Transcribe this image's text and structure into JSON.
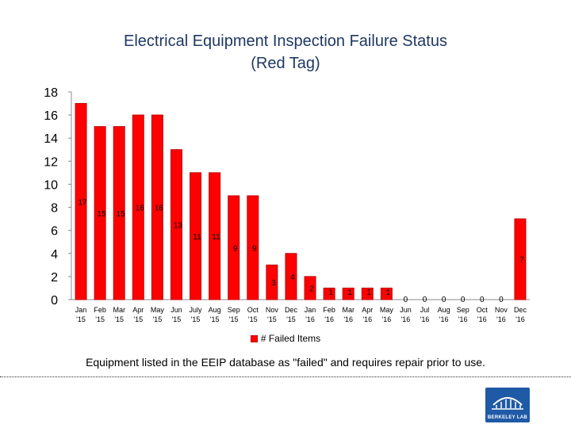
{
  "chart_data": {
    "type": "bar",
    "title_line1": "Electrical Equipment Inspection Failure Status",
    "title_line2": "(Red Tag)",
    "categories": [
      [
        "Jan",
        "'15"
      ],
      [
        "Feb",
        "'15"
      ],
      [
        "Mar",
        "'15"
      ],
      [
        "Apr",
        "'15"
      ],
      [
        "May",
        "'15"
      ],
      [
        "Jun",
        "'15"
      ],
      [
        "July",
        "'15"
      ],
      [
        "Aug",
        "'15"
      ],
      [
        "Sep",
        "'15"
      ],
      [
        "Oct",
        "'15"
      ],
      [
        "Nov",
        "'15"
      ],
      [
        "Dec",
        "'15"
      ],
      [
        "Jan",
        "'16"
      ],
      [
        "Feb",
        "'16"
      ],
      [
        "Mar",
        "'16"
      ],
      [
        "Apr",
        "'16"
      ],
      [
        "May",
        "'16"
      ],
      [
        "Jun",
        "'16"
      ],
      [
        "Jul",
        "'16"
      ],
      [
        "Aug",
        "'16"
      ],
      [
        "Sep",
        "'16"
      ],
      [
        "Oct",
        "'16"
      ],
      [
        "Nov",
        "'16"
      ],
      [
        "Dec",
        "'16"
      ]
    ],
    "series": [
      {
        "name": "# Failed Items",
        "values": [
          17,
          15,
          15,
          16,
          16,
          13,
          11,
          11,
          9,
          9,
          3,
          4,
          2,
          1,
          1,
          1,
          1,
          0,
          0,
          0,
          0,
          0,
          0,
          7
        ],
        "labels": [
          "17",
          "15",
          "15",
          "16",
          "16",
          "13",
          "11",
          "11",
          "9",
          "9",
          "3",
          "4",
          "2",
          "1",
          "1",
          "1",
          "1",
          "0",
          "0",
          "0",
          "0",
          "0",
          "0",
          "7"
        ],
        "color": "#ff0000",
        "border_color": "#c00000"
      }
    ],
    "ylim": [
      0,
      18
    ],
    "yticks": [
      "0",
      "2",
      "4",
      "6",
      "8",
      "10",
      "12",
      "14",
      "16",
      "18"
    ],
    "grid": false,
    "legend_position": "bottom"
  },
  "legend": {
    "label": "# Failed Items"
  },
  "note": "Equipment listed in the EEIP database as \"failed\" and requires repair prior to use.",
  "logo": {
    "text": "BERKELEY LAB",
    "color": "#1f5aa6"
  },
  "colors": {
    "title": "#1f3864",
    "bar": "#ff0000"
  }
}
